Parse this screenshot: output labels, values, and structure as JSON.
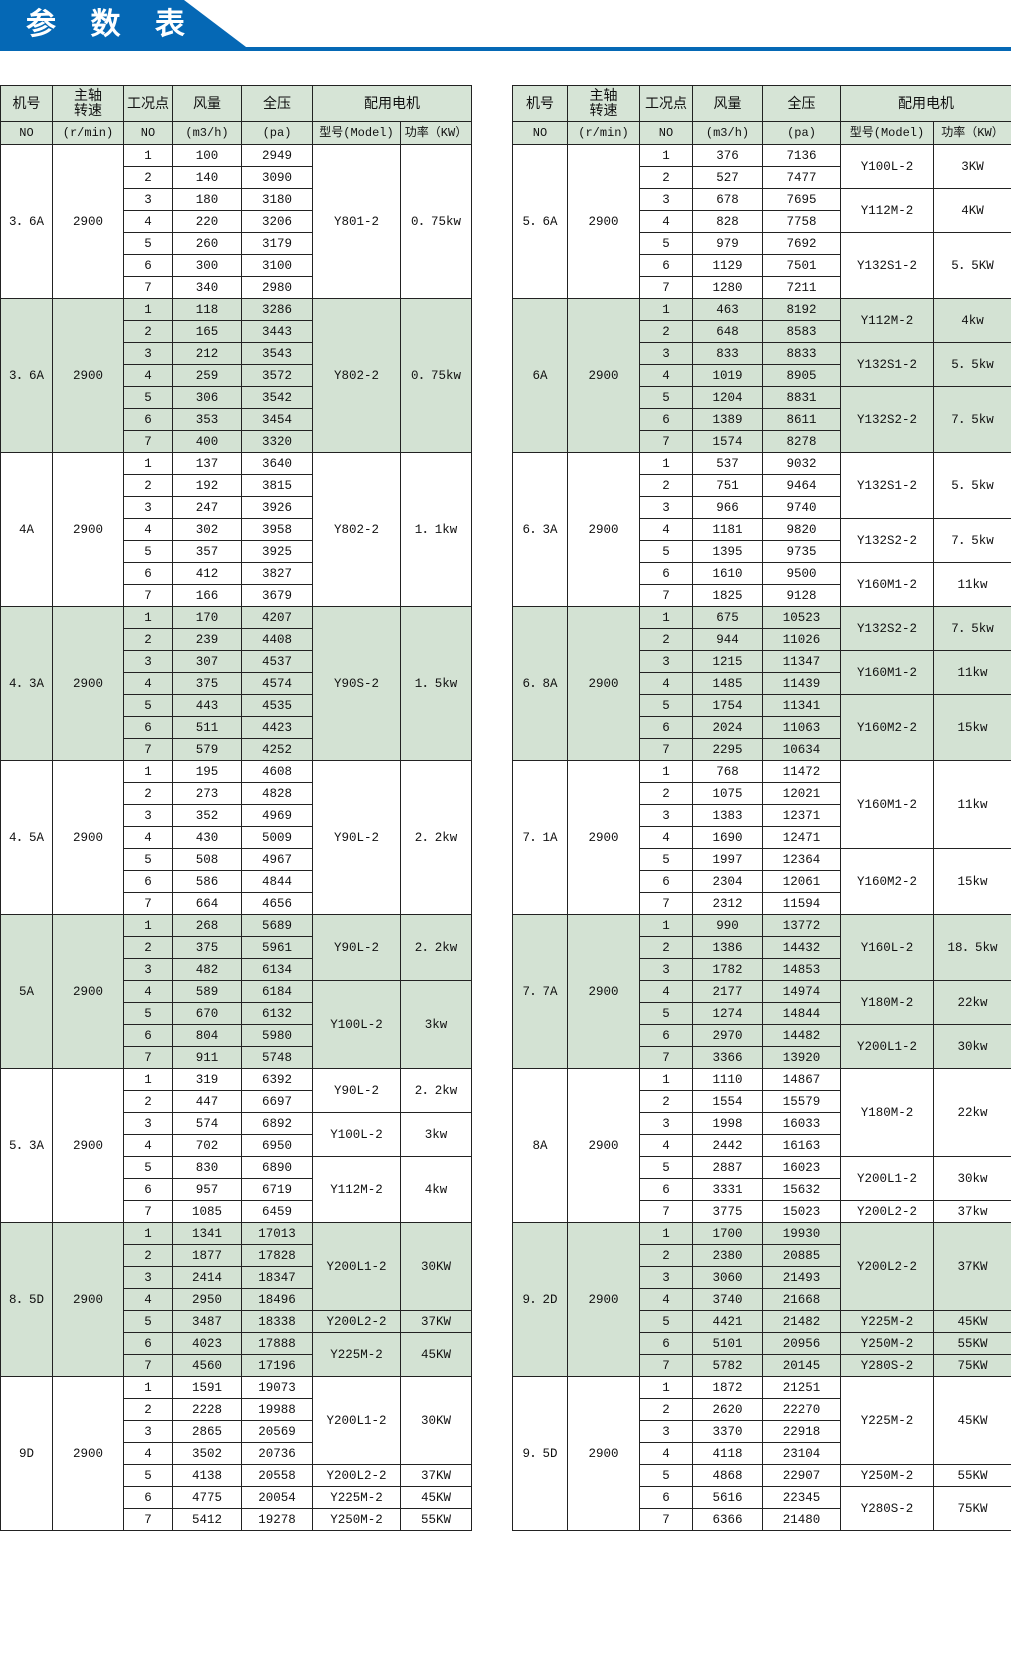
{
  "title": "参 数 表",
  "colors": {
    "brand_blue": "#0568b5",
    "header_bg": "#d6e4d6",
    "shade_bg": "#d3e2d3"
  },
  "header": {
    "no": "机号",
    "speed_line1": "主轴",
    "speed_line2": "转速",
    "point": "工况点",
    "flow": "风量",
    "pressure": "全压",
    "motor": "配用电机",
    "no_unit": "NO",
    "speed_unit": "(r/min)",
    "point_unit": "NO",
    "flow_unit": "(m3/h)",
    "pressure_unit": "(pa)",
    "model": "型号(Model)",
    "power": "功率（KW）"
  },
  "tables": [
    {
      "groups": [
        {
          "no": "3．6A",
          "speed": "2900",
          "rows": [
            [
              "1",
              "100",
              "2949"
            ],
            [
              "2",
              "140",
              "3090"
            ],
            [
              "3",
              "180",
              "3180"
            ],
            [
              "4",
              "220",
              "3206"
            ],
            [
              "5",
              "260",
              "3179"
            ],
            [
              "6",
              "300",
              "3100"
            ],
            [
              "7",
              "340",
              "2980"
            ]
          ],
          "motors": [
            {
              "model": "Y801-2",
              "power": "0．75kw",
              "rows": 7
            }
          ]
        },
        {
          "no": "3．6A",
          "speed": "2900",
          "rows": [
            [
              "1",
              "118",
              "3286"
            ],
            [
              "2",
              "165",
              "3443"
            ],
            [
              "3",
              "212",
              "3543"
            ],
            [
              "4",
              "259",
              "3572"
            ],
            [
              "5",
              "306",
              "3542"
            ],
            [
              "6",
              "353",
              "3454"
            ],
            [
              "7",
              "400",
              "3320"
            ]
          ],
          "motors": [
            {
              "model": "Y802-2",
              "power": "0．75kw",
              "rows": 7
            }
          ]
        },
        {
          "no": "4A",
          "speed": "2900",
          "rows": [
            [
              "1",
              "137",
              "3640"
            ],
            [
              "2",
              "192",
              "3815"
            ],
            [
              "3",
              "247",
              "3926"
            ],
            [
              "4",
              "302",
              "3958"
            ],
            [
              "5",
              "357",
              "3925"
            ],
            [
              "6",
              "412",
              "3827"
            ],
            [
              "7",
              "166",
              "3679"
            ]
          ],
          "motors": [
            {
              "model": "Y802-2",
              "power": "1．1kw",
              "rows": 7
            }
          ]
        },
        {
          "no": "4．3A",
          "speed": "2900",
          "rows": [
            [
              "1",
              "170",
              "4207"
            ],
            [
              "2",
              "239",
              "4408"
            ],
            [
              "3",
              "307",
              "4537"
            ],
            [
              "4",
              "375",
              "4574"
            ],
            [
              "5",
              "443",
              "4535"
            ],
            [
              "6",
              "511",
              "4423"
            ],
            [
              "7",
              "579",
              "4252"
            ]
          ],
          "motors": [
            {
              "model": "Y90S-2",
              "power": "1．5kw",
              "rows": 7
            }
          ]
        },
        {
          "no": "4．5A",
          "speed": "2900",
          "rows": [
            [
              "1",
              "195",
              "4608"
            ],
            [
              "2",
              "273",
              "4828"
            ],
            [
              "3",
              "352",
              "4969"
            ],
            [
              "4",
              "430",
              "5009"
            ],
            [
              "5",
              "508",
              "4967"
            ],
            [
              "6",
              "586",
              "4844"
            ],
            [
              "7",
              "664",
              "4656"
            ]
          ],
          "motors": [
            {
              "model": "Y90L-2",
              "power": "2．2kw",
              "rows": 7
            }
          ]
        },
        {
          "no": "5A",
          "speed": "2900",
          "rows": [
            [
              "1",
              "268",
              "5689"
            ],
            [
              "2",
              "375",
              "5961"
            ],
            [
              "3",
              "482",
              "6134"
            ],
            [
              "4",
              "589",
              "6184"
            ],
            [
              "5",
              "670",
              "6132"
            ],
            [
              "6",
              "804",
              "5980"
            ],
            [
              "7",
              "911",
              "5748"
            ]
          ],
          "motors": [
            {
              "model": "Y90L-2",
              "power": "2．2kw",
              "rows": 3
            },
            {
              "model": "Y100L-2",
              "power": "3kw",
              "rows": 4
            }
          ]
        },
        {
          "no": "5．3A",
          "speed": "2900",
          "rows": [
            [
              "1",
              "319",
              "6392"
            ],
            [
              "2",
              "447",
              "6697"
            ],
            [
              "3",
              "574",
              "6892"
            ],
            [
              "4",
              "702",
              "6950"
            ],
            [
              "5",
              "830",
              "6890"
            ],
            [
              "6",
              "957",
              "6719"
            ],
            [
              "7",
              "1085",
              "6459"
            ]
          ],
          "motors": [
            {
              "model": "Y90L-2",
              "power": "2．2kw",
              "rows": 2
            },
            {
              "model": "Y100L-2",
              "power": "3kw",
              "rows": 2
            },
            {
              "model": "Y112M-2",
              "power": "4kw",
              "rows": 3
            }
          ]
        },
        {
          "no": "8．5D",
          "speed": "2900",
          "rows": [
            [
              "1",
              "1341",
              "17013"
            ],
            [
              "2",
              "1877",
              "17828"
            ],
            [
              "3",
              "2414",
              "18347"
            ],
            [
              "4",
              "2950",
              "18496"
            ],
            [
              "5",
              "3487",
              "18338"
            ],
            [
              "6",
              "4023",
              "17888"
            ],
            [
              "7",
              "4560",
              "17196"
            ]
          ],
          "motors": [
            {
              "model": "Y200L1-2",
              "power": "30KW",
              "rows": 4
            },
            {
              "model": "Y200L2-2",
              "power": "37KW",
              "rows": 1
            },
            {
              "model": "Y225M-2",
              "power": "45KW",
              "rows": 2
            }
          ]
        },
        {
          "no": "9D",
          "speed": "2900",
          "rows": [
            [
              "1",
              "1591",
              "19073"
            ],
            [
              "2",
              "2228",
              "19988"
            ],
            [
              "3",
              "2865",
              "20569"
            ],
            [
              "4",
              "3502",
              "20736"
            ],
            [
              "5",
              "4138",
              "20558"
            ],
            [
              "6",
              "4775",
              "20054"
            ],
            [
              "7",
              "5412",
              "19278"
            ]
          ],
          "motors": [
            {
              "model": "Y200L1-2",
              "power": "30KW",
              "rows": 4
            },
            {
              "model": "Y200L2-2",
              "power": "37KW",
              "rows": 1
            },
            {
              "model": "Y225M-2",
              "power": "45KW",
              "rows": 1
            },
            {
              "model": "Y250M-2",
              "power": "55KW",
              "rows": 1
            }
          ]
        }
      ]
    },
    {
      "groups": [
        {
          "no": "5．6A",
          "speed": "2900",
          "rows": [
            [
              "1",
              "376",
              "7136"
            ],
            [
              "2",
              "527",
              "7477"
            ],
            [
              "3",
              "678",
              "7695"
            ],
            [
              "4",
              "828",
              "7758"
            ],
            [
              "5",
              "979",
              "7692"
            ],
            [
              "6",
              "1129",
              "7501"
            ],
            [
              "7",
              "1280",
              "7211"
            ]
          ],
          "motors": [
            {
              "model": "Y100L-2",
              "power": "3KW",
              "rows": 2
            },
            {
              "model": "Y112M-2",
              "power": "4KW",
              "rows": 2
            },
            {
              "model": "Y132S1-2",
              "power": "5．5KW",
              "rows": 3
            }
          ]
        },
        {
          "no": "6A",
          "speed": "2900",
          "rows": [
            [
              "1",
              "463",
              "8192"
            ],
            [
              "2",
              "648",
              "8583"
            ],
            [
              "3",
              "833",
              "8833"
            ],
            [
              "4",
              "1019",
              "8905"
            ],
            [
              "5",
              "1204",
              "8831"
            ],
            [
              "6",
              "1389",
              "8611"
            ],
            [
              "7",
              "1574",
              "8278"
            ]
          ],
          "motors": [
            {
              "model": "Y112M-2",
              "power": "4kw",
              "rows": 2
            },
            {
              "model": "Y132S1-2",
              "power": "5．5kw",
              "rows": 2
            },
            {
              "model": "Y132S2-2",
              "power": "7．5kw",
              "rows": 3
            }
          ]
        },
        {
          "no": "6．3A",
          "speed": "2900",
          "rows": [
            [
              "1",
              "537",
              "9032"
            ],
            [
              "2",
              "751",
              "9464"
            ],
            [
              "3",
              "966",
              "9740"
            ],
            [
              "4",
              "1181",
              "9820"
            ],
            [
              "5",
              "1395",
              "9735"
            ],
            [
              "6",
              "1610",
              "9500"
            ],
            [
              "7",
              "1825",
              "9128"
            ]
          ],
          "motors": [
            {
              "model": "Y132S1-2",
              "power": "5．5kw",
              "rows": 3
            },
            {
              "model": "Y132S2-2",
              "power": "7．5kw",
              "rows": 2
            },
            {
              "model": "Y160M1-2",
              "power": "11kw",
              "rows": 2
            }
          ]
        },
        {
          "no": "6．8A",
          "speed": "2900",
          "rows": [
            [
              "1",
              "675",
              "10523"
            ],
            [
              "2",
              "944",
              "11026"
            ],
            [
              "3",
              "1215",
              "11347"
            ],
            [
              "4",
              "1485",
              "11439"
            ],
            [
              "5",
              "1754",
              "11341"
            ],
            [
              "6",
              "2024",
              "11063"
            ],
            [
              "7",
              "2295",
              "10634"
            ]
          ],
          "motors": [
            {
              "model": "Y132S2-2",
              "power": "7．5kw",
              "rows": 2
            },
            {
              "model": "Y160M1-2",
              "power": "11kw",
              "rows": 2
            },
            {
              "model": "Y160M2-2",
              "power": "15kw",
              "rows": 3
            }
          ]
        },
        {
          "no": "7．1A",
          "speed": "2900",
          "rows": [
            [
              "1",
              "768",
              "11472"
            ],
            [
              "2",
              "1075",
              "12021"
            ],
            [
              "3",
              "1383",
              "12371"
            ],
            [
              "4",
              "1690",
              "12471"
            ],
            [
              "5",
              "1997",
              "12364"
            ],
            [
              "6",
              "2304",
              "12061"
            ],
            [
              "7",
              "2312",
              "11594"
            ]
          ],
          "motors": [
            {
              "model": "Y160M1-2",
              "power": "11kw",
              "rows": 4
            },
            {
              "model": "Y160M2-2",
              "power": "15kw",
              "rows": 3
            }
          ]
        },
        {
          "no": "7．7A",
          "speed": "2900",
          "rows": [
            [
              "1",
              "990",
              "13772"
            ],
            [
              "2",
              "1386",
              "14432"
            ],
            [
              "3",
              "1782",
              "14853"
            ],
            [
              "4",
              "2177",
              "14974"
            ],
            [
              "5",
              "1274",
              "14844"
            ],
            [
              "6",
              "2970",
              "14482"
            ],
            [
              "7",
              "3366",
              "13920"
            ]
          ],
          "motors": [
            {
              "model": "Y160L-2",
              "power": "18．5kw",
              "rows": 3
            },
            {
              "model": "Y180M-2",
              "power": "22kw",
              "rows": 2
            },
            {
              "model": "Y200L1-2",
              "power": "30kw",
              "rows": 2
            }
          ]
        },
        {
          "no": "8A",
          "speed": "2900",
          "rows": [
            [
              "1",
              "1110",
              "14867"
            ],
            [
              "2",
              "1554",
              "15579"
            ],
            [
              "3",
              "1998",
              "16033"
            ],
            [
              "4",
              "2442",
              "16163"
            ],
            [
              "5",
              "2887",
              "16023"
            ],
            [
              "6",
              "3331",
              "15632"
            ],
            [
              "7",
              "3775",
              "15023"
            ]
          ],
          "motors": [
            {
              "model": "Y180M-2",
              "power": "22kw",
              "rows": 4
            },
            {
              "model": "Y200L1-2",
              "power": "30kw",
              "rows": 2
            },
            {
              "model": "Y200L2-2",
              "power": "37kw",
              "rows": 1
            }
          ]
        },
        {
          "no": "9．2D",
          "speed": "2900",
          "rows": [
            [
              "1",
              "1700",
              "19930"
            ],
            [
              "2",
              "2380",
              "20885"
            ],
            [
              "3",
              "3060",
              "21493"
            ],
            [
              "4",
              "3740",
              "21668"
            ],
            [
              "5",
              "4421",
              "21482"
            ],
            [
              "6",
              "5101",
              "20956"
            ],
            [
              "7",
              "5782",
              "20145"
            ]
          ],
          "motors": [
            {
              "model": "Y200L2-2",
              "power": "37KW",
              "rows": 4
            },
            {
              "model": "Y225M-2",
              "power": "45KW",
              "rows": 1
            },
            {
              "model": "Y250M-2",
              "power": "55KW",
              "rows": 1
            },
            {
              "model": "Y280S-2",
              "power": "75KW",
              "rows": 1
            }
          ]
        },
        {
          "no": "9．5D",
          "speed": "2900",
          "rows": [
            [
              "1",
              "1872",
              "21251"
            ],
            [
              "2",
              "2620",
              "22270"
            ],
            [
              "3",
              "3370",
              "22918"
            ],
            [
              "4",
              "4118",
              "23104"
            ],
            [
              "5",
              "4868",
              "22907"
            ],
            [
              "6",
              "5616",
              "22345"
            ],
            [
              "7",
              "6366",
              "21480"
            ]
          ],
          "motors": [
            {
              "model": "Y225M-2",
              "power": "45KW",
              "rows": 4
            },
            {
              "model": "Y250M-2",
              "power": "55KW",
              "rows": 1
            },
            {
              "model": "Y280S-2",
              "power": "75KW",
              "rows": 2
            }
          ]
        }
      ]
    }
  ]
}
